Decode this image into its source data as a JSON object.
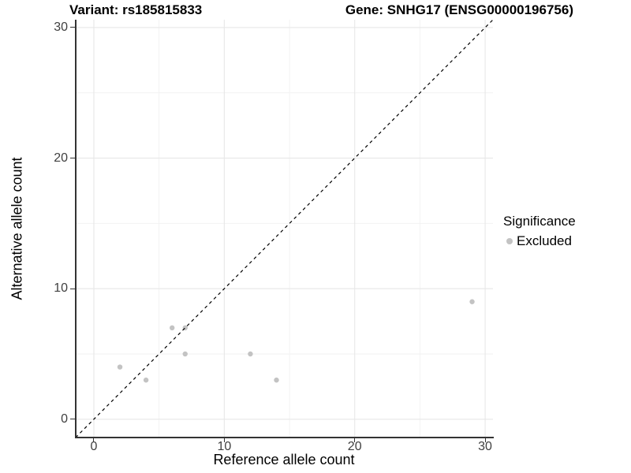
{
  "header": {
    "variant_title": "Variant: rs185815833",
    "gene_title": "Gene: SNHG17 (ENSG00000196756)"
  },
  "chart_data": {
    "type": "scatter",
    "title_left": "Variant: rs185815833",
    "title_right": "Gene: SNHG17 (ENSG00000196756)",
    "xlabel": "Reference allele count",
    "ylabel": "Alternative allele count",
    "xlim": [
      -1.45,
      30.6
    ],
    "ylim": [
      -1.4,
      30.6
    ],
    "x_ticks": [
      0,
      10,
      20,
      30
    ],
    "y_ticks": [
      0,
      10,
      20,
      30
    ],
    "x_minor_ticks": [
      5,
      15,
      25
    ],
    "y_minor_ticks": [
      5,
      15,
      25
    ],
    "grid": true,
    "series": [
      {
        "name": "Excluded",
        "points": [
          [
            2,
            4
          ],
          [
            4,
            3
          ],
          [
            6,
            7
          ],
          [
            7,
            5
          ],
          [
            7,
            7
          ],
          [
            12,
            5
          ],
          [
            14,
            3
          ],
          [
            29,
            9
          ]
        ]
      }
    ],
    "identity_line": {
      "style": "dashed",
      "from": [
        -1.4,
        -1.4
      ],
      "to": [
        30.6,
        30.6
      ]
    },
    "colors": {
      "point": "#c3c3c3",
      "grid_major": "#e7e7e7",
      "grid_minor": "#f2f2f2",
      "axis": "#333333",
      "dash_line": "#000000",
      "tick_text": "#404040",
      "title_text": "#000000"
    },
    "legend_position": "right"
  },
  "legend": {
    "title": "Significance",
    "items": [
      {
        "label": "Excluded",
        "color": "#c3c3c3"
      }
    ]
  }
}
